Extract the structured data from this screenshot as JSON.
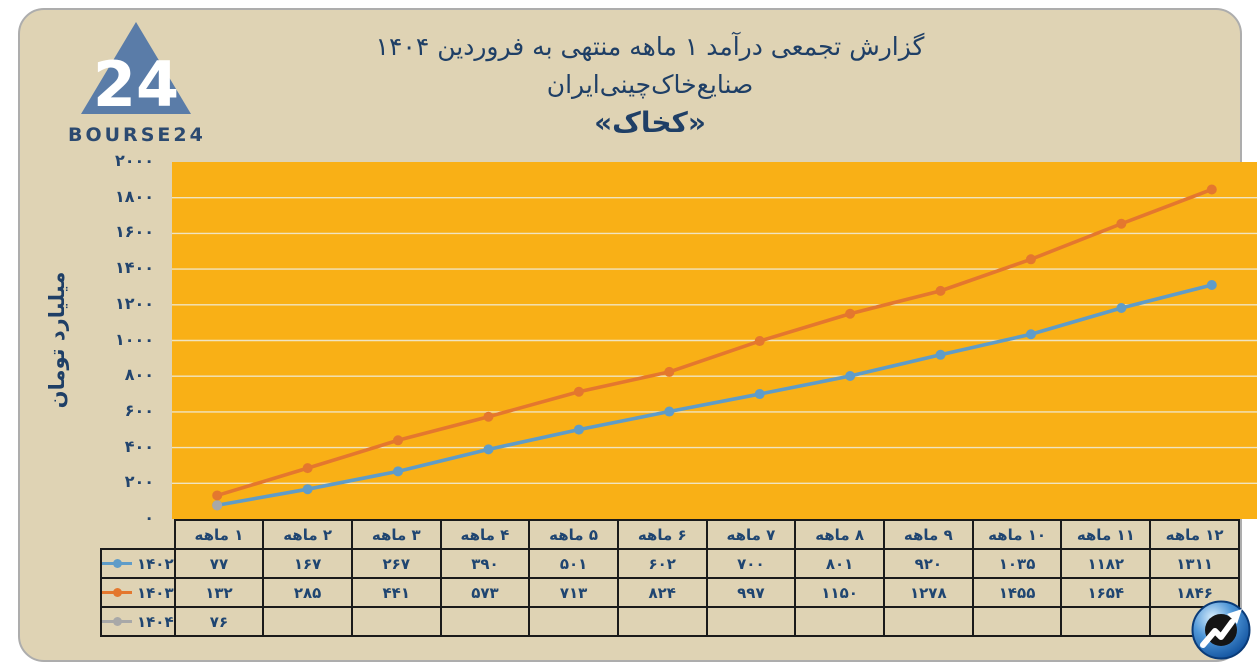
{
  "logo": {
    "brand_text": "BOURSE24",
    "triangle_number": "24"
  },
  "title": {
    "line1": "گزارش تجمعی درآمد ۱ ماهه منتهی به فروردین ۱۴۰۴",
    "line2": "صنایع‌خاک‌چینی‌ایران",
    "line3": "«کخاک»"
  },
  "chart_data": {
    "type": "line",
    "title": "گزارش تجمعی درآمد ۱ ماهه منتهی به فروردین ۱۴۰۴ صنایع‌خاک‌چینی‌ایران «کخاک»",
    "ylabel": "میلیارد تومان",
    "xlabel": "",
    "ylim": [
      0,
      2000
    ],
    "ytick_step": 200,
    "ytick_labels": [
      "۰",
      "۲۰۰",
      "۴۰۰",
      "۶۰۰",
      "۸۰۰",
      "۱۰۰۰",
      "۱۲۰۰",
      "۱۴۰۰",
      "۱۶۰۰",
      "۱۸۰۰",
      "۲۰۰۰"
    ],
    "categories": [
      "۱ ماهه",
      "۲ ماهه",
      "۳ ماهه",
      "۴ ماهه",
      "۵ ماهه",
      "۶ ماهه",
      "۷ ماهه",
      "۸ ماهه",
      "۹ ماهه",
      "۱۰ ماهه",
      "۱۱ ماهه",
      "۱۲ ماهه"
    ],
    "grid": true,
    "legend_position": "table-left",
    "plot_background": "#F9B016",
    "gridline_color": "#F0E4C1",
    "series": [
      {
        "name": "۱۴۰۲",
        "color": "#5F9CC8",
        "values": [
          77,
          167,
          267,
          390,
          501,
          602,
          700,
          801,
          920,
          1035,
          1182,
          1311
        ],
        "labels": [
          "۷۷",
          "۱۶۷",
          "۲۶۷",
          "۳۹۰",
          "۵۰۱",
          "۶۰۲",
          "۷۰۰",
          "۸۰۱",
          "۹۲۰",
          "۱۰۳۵",
          "۱۱۸۲",
          "۱۳۱۱"
        ]
      },
      {
        "name": "۱۴۰۳",
        "color": "#E4772E",
        "values": [
          132,
          285,
          441,
          573,
          713,
          824,
          997,
          1150,
          1278,
          1455,
          1654,
          1846
        ],
        "labels": [
          "۱۳۲",
          "۲۸۵",
          "۴۴۱",
          "۵۷۳",
          "۷۱۳",
          "۸۲۴",
          "۹۹۷",
          "۱۱۵۰",
          "۱۲۷۸",
          "۱۴۵۵",
          "۱۶۵۴",
          "۱۸۴۶"
        ]
      },
      {
        "name": "۱۴۰۴",
        "color": "#A8A8A8",
        "values": [
          76
        ],
        "labels": [
          "۷۶"
        ]
      }
    ]
  },
  "colors": {
    "card_background": "#DFD3B4",
    "text_navy": "#1F3F66",
    "table_border": "#1A1A1A",
    "logo_triangle": "#5A7CA8",
    "icon_blue": "#2E7BC4"
  }
}
